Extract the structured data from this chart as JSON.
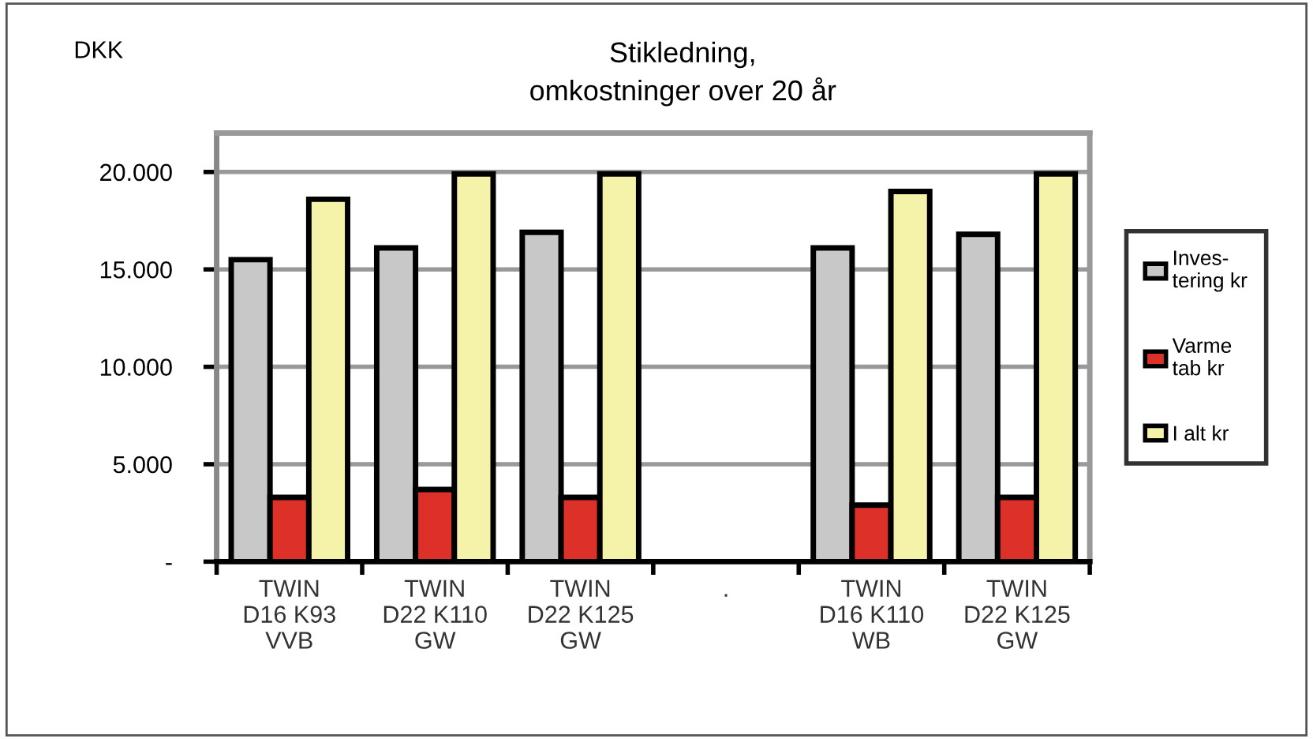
{
  "chart_data": {
    "type": "bar",
    "title": "Stikledning,\nomkostninger over 20 år",
    "ylabel": "DKK",
    "categories": [
      "TWIN\nD16 K93\nVVB",
      "TWIN\nD22 K110\nGW",
      "TWIN\nD22 K125\nGW",
      ".",
      "TWIN\nD16 K110\nWB",
      "TWIN\nD22 K125\nGW"
    ],
    "series": [
      {
        "name": "Inves-\ntering kr",
        "color": "#c8c8c8",
        "values": [
          15500,
          16100,
          16900,
          null,
          16100,
          16800
        ]
      },
      {
        "name": "Varme\ntab kr",
        "color": "#dc3028",
        "values": [
          3300,
          3700,
          3300,
          null,
          2900,
          3300
        ]
      },
      {
        "name": "I alt kr",
        "color": "#f5f2aa",
        "values": [
          18600,
          19900,
          19900,
          null,
          19000,
          19900
        ]
      }
    ],
    "ylim": [
      0,
      22000
    ],
    "yticks": [
      {
        "value": 0,
        "label": "-"
      },
      {
        "value": 5000,
        "label": "5.000"
      },
      {
        "value": 10000,
        "label": "10.000"
      },
      {
        "value": 15000,
        "label": "15.000"
      },
      {
        "value": 20000,
        "label": "20.000"
      }
    ],
    "grid": "y",
    "legend": "right"
  }
}
